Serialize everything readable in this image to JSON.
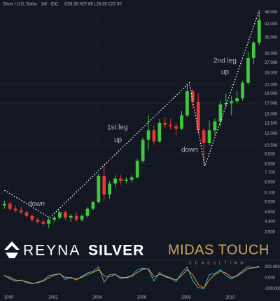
{
  "chart_data": {
    "type": "candlestick",
    "title": "Silver / U.S. Dollar · 1W · IDC",
    "ohlc_label": "O26.35 H27.68 L26.35 C27.30",
    "log_scale": true,
    "grid": true,
    "up_color": "#3ec93e",
    "down_color": "#e53935",
    "x": [
      1999.8,
      2000.05,
      2000.3,
      2000.55,
      2000.8,
      2001.05,
      2001.3,
      2001.55,
      2001.8,
      2002.05,
      2002.3,
      2002.55,
      2002.8,
      2003.05,
      2003.3,
      2003.55,
      2003.8,
      2004.05,
      2004.3,
      2004.55,
      2004.8,
      2005.05,
      2005.3,
      2005.55,
      2005.8,
      2006.05,
      2006.3,
      2006.55,
      2006.8,
      2007.05,
      2007.3,
      2007.55,
      2007.8,
      2008.05,
      2008.3,
      2008.55,
      2008.8,
      2009.05,
      2009.3,
      2009.55,
      2009.8,
      2010.05,
      2010.3,
      2010.55,
      2010.8,
      2011.05,
      2011.3
    ],
    "open": [
      5.3,
      5.4,
      5.1,
      5.0,
      4.9,
      4.7,
      4.5,
      4.4,
      4.3,
      4.5,
      4.6,
      4.9,
      4.6,
      4.7,
      4.5,
      4.7,
      5.1,
      5.5,
      7.4,
      6.0,
      6.8,
      7.2,
      7.0,
      7.1,
      7.3,
      8.8,
      11.2,
      12.5,
      11.0,
      13.6,
      13.3,
      13.1,
      12.7,
      14.8,
      19.5,
      17.3,
      12.5,
      10.8,
      12.5,
      13.8,
      16.8,
      17.0,
      17.4,
      18.0,
      21.5,
      28.5,
      34.0
    ],
    "high": [
      5.6,
      5.5,
      5.3,
      5.2,
      5.0,
      4.8,
      4.6,
      4.5,
      4.6,
      4.7,
      5.0,
      5.0,
      4.8,
      4.9,
      4.8,
      5.2,
      5.6,
      7.6,
      8.3,
      7.0,
      7.5,
      7.5,
      7.3,
      7.5,
      9.0,
      11.5,
      14.8,
      13.2,
      14.2,
      14.5,
      14.3,
      13.5,
      15.6,
      21.0,
      20.0,
      19.0,
      12.8,
      14.0,
      14.3,
      17.5,
      19.0,
      18.5,
      19.5,
      22.0,
      30.5,
      34.5,
      49.0
    ],
    "low": [
      5.1,
      5.0,
      4.9,
      4.8,
      4.6,
      4.4,
      4.3,
      4.2,
      4.1,
      4.4,
      4.5,
      4.5,
      4.4,
      4.4,
      4.4,
      4.6,
      5.0,
      5.4,
      5.6,
      5.7,
      6.5,
      6.7,
      6.8,
      6.9,
      7.2,
      8.6,
      10.0,
      10.6,
      10.8,
      12.8,
      12.6,
      11.8,
      12.5,
      14.5,
      16.0,
      12.0,
      8.4,
      10.5,
      11.8,
      13.0,
      16.2,
      14.8,
      17.0,
      17.5,
      21.0,
      26.5,
      33.0
    ],
    "close": [
      5.4,
      5.1,
      5.0,
      4.9,
      4.7,
      4.5,
      4.4,
      4.3,
      4.5,
      4.6,
      4.9,
      4.6,
      4.7,
      4.5,
      4.7,
      5.1,
      5.5,
      7.4,
      6.0,
      6.8,
      7.2,
      7.0,
      7.1,
      7.3,
      8.8,
      11.2,
      12.5,
      11.0,
      13.6,
      13.3,
      13.1,
      12.7,
      14.8,
      19.5,
      17.3,
      12.5,
      10.8,
      12.5,
      13.8,
      16.8,
      17.0,
      17.4,
      18.0,
      21.5,
      28.5,
      34.0,
      44.0
    ],
    "xlim": [
      1999.6,
      2011.45
    ],
    "xticks": [
      2000,
      2002,
      2004,
      2006,
      2008,
      2010
    ],
    "ylim": [
      2.9,
      51
    ],
    "yticks": [
      {
        "value": 48,
        "label": "48.000"
      },
      {
        "value": 42,
        "label": "42.000"
      },
      {
        "value": 36,
        "label": "36.000"
      },
      {
        "value": 30,
        "label": "30.000"
      },
      {
        "value": 27,
        "label": "27.000"
      },
      {
        "value": 24,
        "label": "24.000"
      },
      {
        "value": 21,
        "label": "21.000"
      },
      {
        "value": 19,
        "label": "19.000"
      },
      {
        "value": 17,
        "label": "17.000"
      },
      {
        "value": 15,
        "label": "15.000"
      },
      {
        "value": 13.5,
        "label": "13.500"
      },
      {
        "value": 12,
        "label": "12.000"
      },
      {
        "value": 10.5,
        "label": "10.500"
      },
      {
        "value": 9.5,
        "label": "9.500"
      },
      {
        "value": 8.5,
        "label": "8.500"
      },
      {
        "value": 7.7,
        "label": "7.700"
      },
      {
        "value": 6.9,
        "label": "6.900"
      },
      {
        "value": 6.1,
        "label": "6.100"
      },
      {
        "value": 5.5,
        "label": "5.500"
      },
      {
        "value": 4.9,
        "label": "4.900"
      },
      {
        "value": 4.4,
        "label": "4.400"
      },
      {
        "value": 3.9,
        "label": "3.900"
      }
    ],
    "trendline": {
      "color": "#ffffff",
      "x": [
        1999.8,
        2001.85,
        2008.15,
        2008.85,
        2011.3
      ],
      "y": [
        6.3,
        4.6,
        21.5,
        8.3,
        49
      ]
    },
    "annotations": [
      {
        "lines": [
          "down"
        ],
        "color": "#f04438"
      },
      {
        "lines": [
          "1st leg",
          "up"
        ],
        "color": "#45c945"
      },
      {
        "lines": [
          "down"
        ],
        "color": "#f04438"
      },
      {
        "lines": [
          "2nd leg",
          "up"
        ],
        "color": "#45c945"
      }
    ],
    "indicator": {
      "ylim": [
        -260,
        260
      ],
      "yticks": [
        {
          "value": 200,
          "label": "200.000"
        },
        {
          "value": 0,
          "label": "0.000"
        },
        {
          "value": -200,
          "label": "-200.000"
        }
      ],
      "series": [
        {
          "color": "#35c6e8",
          "values": [
            50,
            -20,
            -60,
            -40,
            -90,
            -110,
            -80,
            -50,
            40,
            60,
            80,
            -30,
            10,
            -40,
            30,
            90,
            120,
            200,
            -80,
            60,
            70,
            -20,
            10,
            40,
            150,
            180,
            160,
            -60,
            100,
            20,
            -10,
            -70,
            90,
            200,
            -50,
            -180,
            -200,
            60,
            80,
            150,
            40,
            -20,
            50,
            130,
            210,
            180,
            220
          ]
        },
        {
          "color": "#f0a030",
          "values": [
            30,
            10,
            -40,
            -50,
            -70,
            -100,
            -90,
            -60,
            0,
            50,
            70,
            10,
            0,
            -20,
            10,
            60,
            100,
            150,
            40,
            20,
            60,
            10,
            0,
            30,
            100,
            160,
            170,
            20,
            60,
            40,
            0,
            -40,
            40,
            150,
            60,
            -120,
            -190,
            -40,
            60,
            120,
            90,
            10,
            30,
            100,
            170,
            190,
            200
          ]
        }
      ]
    }
  },
  "logos": {
    "reyna": "REYNA",
    "silver": "SILVER",
    "midas": "MIDAS TOUCH",
    "consulting": "CONSULTING"
  }
}
